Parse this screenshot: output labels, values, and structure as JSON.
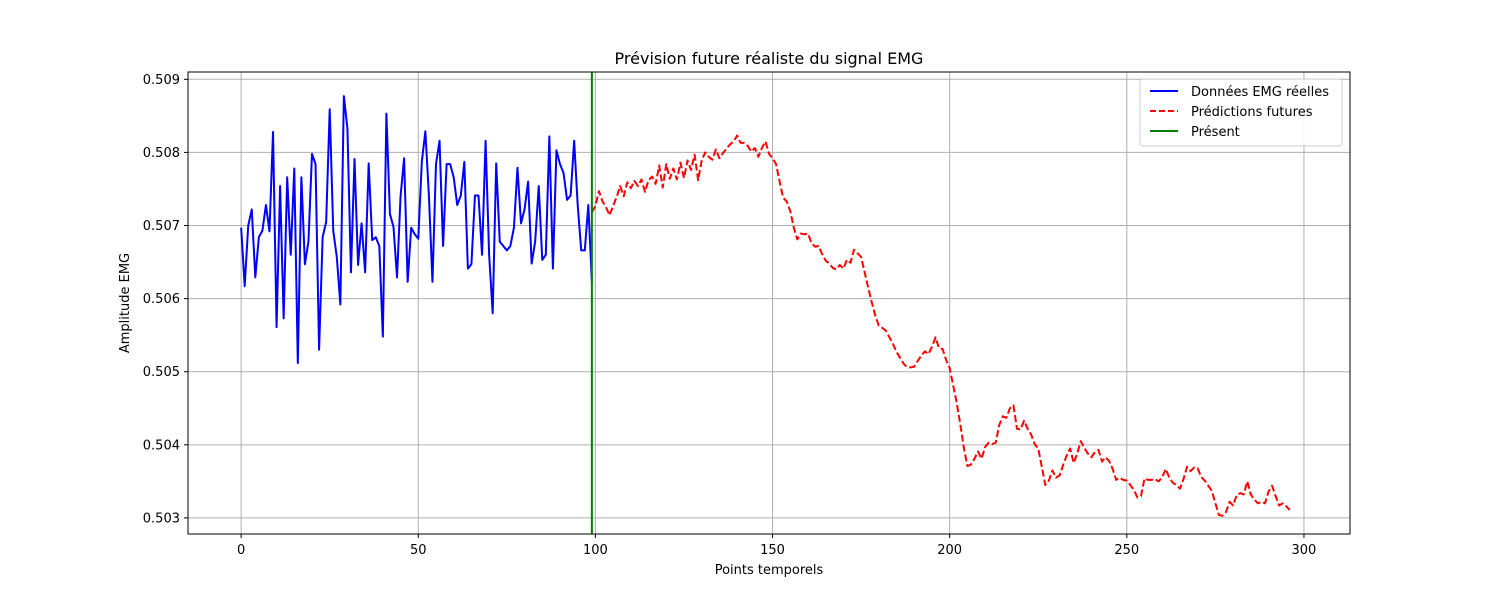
{
  "chart_data": {
    "type": "line",
    "title": "Prévision future réaliste du signal EMG",
    "xlabel": "Points temporels",
    "ylabel": "Amplitude EMG",
    "xlim": [
      -15,
      313
    ],
    "ylim": [
      0.50278,
      0.5091
    ],
    "xticks": [
      0,
      50,
      100,
      150,
      200,
      250,
      300
    ],
    "yticks": [
      0.503,
      0.504,
      0.505,
      0.506,
      0.507,
      0.508,
      0.509
    ],
    "grid": true,
    "legend_position": "top-right",
    "series": [
      {
        "name": "Données EMG réelles",
        "color": "#0000ff",
        "style": "solid",
        "x_start": 0,
        "x_step": 1,
        "values": [
          0.50697,
          0.50617,
          0.507,
          0.50722,
          0.50629,
          0.50684,
          0.50693,
          0.50728,
          0.50692,
          0.50828,
          0.50561,
          0.50754,
          0.50573,
          0.50766,
          0.5066,
          0.50778,
          0.50512,
          0.50766,
          0.50647,
          0.50678,
          0.50798,
          0.50784,
          0.5053,
          0.50684,
          0.50705,
          0.50859,
          0.50693,
          0.50657,
          0.50592,
          0.50877,
          0.50833,
          0.50636,
          0.50791,
          0.50646,
          0.50703,
          0.50636,
          0.50785,
          0.5068,
          0.50684,
          0.50672,
          0.50548,
          0.50853,
          0.50716,
          0.50698,
          0.50629,
          0.5074,
          0.50792,
          0.50623,
          0.50697,
          0.50688,
          0.50682,
          0.50787,
          0.50829,
          0.50741,
          0.50623,
          0.50784,
          0.50816,
          0.50672,
          0.50784,
          0.50784,
          0.50766,
          0.50728,
          0.50741,
          0.50787,
          0.50641,
          0.50647,
          0.50741,
          0.50741,
          0.5066,
          0.50816,
          0.5066,
          0.5058,
          0.50785,
          0.50678,
          0.50672,
          0.50666,
          0.50672,
          0.50697,
          0.50779,
          0.50703,
          0.50722,
          0.5076,
          0.50648,
          0.50678,
          0.50754,
          0.50653,
          0.5066,
          0.50822,
          0.50641,
          0.50803,
          0.50784,
          0.50772,
          0.50735,
          0.50741,
          0.50816,
          0.50728,
          0.50666,
          0.50666,
          0.50728,
          0.50623
        ]
      },
      {
        "name": "Prédictions futures",
        "color": "#ff0000",
        "style": "dashed",
        "x_start": 99,
        "x_step": 1,
        "values": [
          0.50718,
          0.50727,
          0.50747,
          0.50733,
          0.50725,
          0.50714,
          0.50727,
          0.50739,
          0.50754,
          0.5074,
          0.50759,
          0.50751,
          0.50761,
          0.50754,
          0.50763,
          0.50746,
          0.50762,
          0.50767,
          0.50757,
          0.50782,
          0.50752,
          0.50784,
          0.50764,
          0.50778,
          0.50763,
          0.50786,
          0.50765,
          0.50789,
          0.50776,
          0.50797,
          0.50762,
          0.50789,
          0.508,
          0.50794,
          0.5079,
          0.50804,
          0.50792,
          0.50799,
          0.50805,
          0.50811,
          0.50815,
          0.50823,
          0.50813,
          0.50813,
          0.50809,
          0.50801,
          0.50806,
          0.50794,
          0.50806,
          0.50815,
          0.50798,
          0.50792,
          0.50784,
          0.5076,
          0.50738,
          0.50733,
          0.5072,
          0.50697,
          0.50681,
          0.50689,
          0.50688,
          0.50689,
          0.50676,
          0.50671,
          0.50672,
          0.50661,
          0.50652,
          0.50648,
          0.50642,
          0.5064,
          0.50646,
          0.50641,
          0.50653,
          0.50649,
          0.50667,
          0.50662,
          0.50657,
          0.50636,
          0.50615,
          0.50595,
          0.50577,
          0.50563,
          0.5056,
          0.50556,
          0.50547,
          0.50538,
          0.50527,
          0.50519,
          0.50511,
          0.50506,
          0.50506,
          0.50507,
          0.50515,
          0.50522,
          0.50528,
          0.50524,
          0.50534,
          0.50547,
          0.50532,
          0.50531,
          0.50516,
          0.50505,
          0.50481,
          0.50457,
          0.50428,
          0.50396,
          0.50371,
          0.50373,
          0.50381,
          0.50391,
          0.50381,
          0.50397,
          0.50403,
          0.50401,
          0.50403,
          0.50427,
          0.50439,
          0.50437,
          0.5045,
          0.50454,
          0.50422,
          0.50421,
          0.50433,
          0.50422,
          0.50414,
          0.50401,
          0.50395,
          0.5037,
          0.50345,
          0.50351,
          0.50365,
          0.50355,
          0.50358,
          0.50372,
          0.50385,
          0.50395,
          0.50375,
          0.50388,
          0.50405,
          0.50396,
          0.50388,
          0.50383,
          0.5039,
          0.50393,
          0.50377,
          0.50383,
          0.50378,
          0.50367,
          0.50352,
          0.50355,
          0.50352,
          0.50351,
          0.50345,
          0.50338,
          0.50328,
          0.5033,
          0.50354,
          0.50352,
          0.50352,
          0.50353,
          0.5035,
          0.50356,
          0.50367,
          0.50355,
          0.50348,
          0.50345,
          0.5034,
          0.50353,
          0.5037,
          0.50364,
          0.50369,
          0.50368,
          0.50356,
          0.50351,
          0.50344,
          0.50337,
          0.5032,
          0.50304,
          0.50303,
          0.50308,
          0.50322,
          0.50317,
          0.50331,
          0.50334,
          0.50332,
          0.5035,
          0.50332,
          0.50325,
          0.5032,
          0.50322,
          0.5032,
          0.50336,
          0.50344,
          0.5033,
          0.50317,
          0.5032,
          0.50316,
          0.50311
        ]
      }
    ],
    "vlines": [
      {
        "name": "Présent",
        "x": 99,
        "color": "#008000"
      }
    ]
  }
}
